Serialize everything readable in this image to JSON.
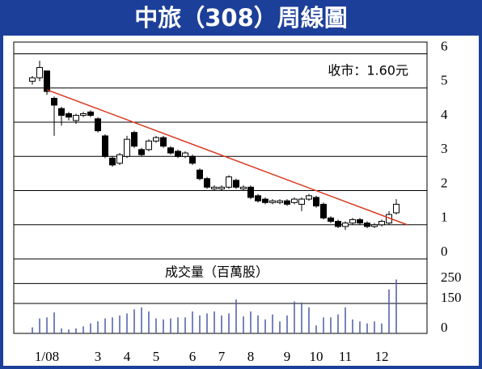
{
  "chart_data": {
    "type": "candlestick",
    "title": "中旅（308）周線圖",
    "annotation": "收市：1.60元",
    "categories": [
      null,
      null,
      "1/08",
      null,
      null,
      null,
      null,
      null,
      null,
      "3",
      null,
      null,
      null,
      "4",
      null,
      null,
      null,
      "5",
      null,
      null,
      null,
      null,
      "6",
      null,
      null,
      null,
      "7",
      null,
      null,
      null,
      "8",
      null,
      null,
      null,
      null,
      "9",
      null,
      null,
      null,
      "10",
      null,
      null,
      null,
      "11",
      null,
      null,
      null,
      null,
      "12",
      null,
      null
    ],
    "open": [
      5.2,
      5.3,
      5.5,
      4.7,
      4.4,
      4.25,
      4.05,
      4.2,
      4.3,
      4.1,
      3.6,
      2.95,
      2.8,
      3.0,
      3.7,
      3.2,
      3.2,
      3.45,
      3.55,
      3.25,
      3.15,
      3.0,
      3.0,
      2.6,
      2.35,
      2.05,
      2.05,
      2.1,
      2.3,
      2.05,
      2.1,
      1.85,
      1.75,
      1.65,
      1.65,
      1.7,
      1.65,
      1.6,
      1.75,
      1.8,
      1.6,
      1.2,
      1.1,
      0.95,
      1.05,
      1.15,
      1.05,
      0.95,
      1.0,
      1.05,
      1.35
    ],
    "high": [
      5.35,
      5.8,
      5.5,
      4.75,
      4.45,
      4.3,
      4.25,
      4.3,
      4.35,
      4.15,
      3.65,
      3.0,
      3.1,
      3.6,
      3.75,
      3.25,
      3.5,
      3.6,
      3.6,
      3.3,
      3.2,
      3.15,
      3.05,
      2.65,
      2.4,
      2.15,
      2.15,
      2.45,
      2.35,
      2.15,
      2.15,
      1.9,
      1.8,
      1.75,
      1.75,
      1.75,
      1.8,
      1.8,
      1.9,
      1.85,
      1.65,
      1.25,
      1.15,
      1.1,
      1.2,
      1.2,
      1.1,
      1.05,
      1.15,
      1.4,
      1.75
    ],
    "low": [
      5.1,
      5.2,
      4.8,
      3.6,
      3.9,
      4.05,
      3.95,
      4.15,
      4.15,
      3.7,
      2.95,
      2.7,
      2.75,
      2.95,
      3.25,
      3.0,
      3.15,
      3.4,
      3.25,
      3.05,
      2.95,
      2.95,
      2.75,
      2.3,
      2.05,
      2.0,
      2.0,
      2.05,
      2.05,
      2.0,
      1.75,
      1.65,
      1.6,
      1.6,
      1.6,
      1.55,
      1.6,
      1.4,
      1.7,
      1.5,
      1.15,
      1.05,
      0.9,
      0.85,
      1.0,
      1.0,
      0.9,
      0.9,
      0.95,
      1.0,
      1.3
    ],
    "close": [
      5.3,
      5.6,
      4.9,
      4.5,
      4.2,
      4.15,
      4.2,
      4.25,
      4.2,
      3.75,
      3.0,
      2.75,
      3.05,
      3.5,
      3.3,
      3.05,
      3.45,
      3.55,
      3.3,
      3.1,
      3.0,
      3.1,
      2.8,
      2.35,
      2.1,
      2.1,
      2.1,
      2.4,
      2.1,
      2.1,
      1.8,
      1.7,
      1.65,
      1.7,
      1.7,
      1.6,
      1.75,
      1.75,
      1.85,
      1.55,
      1.2,
      1.1,
      0.95,
      1.05,
      1.15,
      1.05,
      0.95,
      1.0,
      1.1,
      1.3,
      1.6
    ],
    "up_color": "#ffffff",
    "down_color": "#000000",
    "ylim": [
      0,
      6.25
    ],
    "yticks": [
      0,
      1,
      2,
      3,
      4,
      5,
      6
    ],
    "grid": true,
    "trendline": {
      "color": "#d9381e",
      "x": [
        2,
        51.5
      ],
      "values": [
        4.95,
        1.0
      ]
    },
    "volume": {
      "type": "bar",
      "label": "成交量（百萬股）",
      "color": "#4a5aa8",
      "values": [
        30,
        75,
        80,
        105,
        25,
        20,
        25,
        35,
        50,
        60,
        75,
        80,
        90,
        100,
        120,
        130,
        110,
        75,
        70,
        75,
        80,
        80,
        110,
        90,
        100,
        110,
        90,
        100,
        170,
        85,
        110,
        90,
        70,
        95,
        60,
        90,
        160,
        155,
        130,
        40,
        80,
        80,
        95,
        130,
        70,
        60,
        50,
        60,
        50,
        220,
        270
      ],
      "ylim": [
        0,
        373
      ],
      "yticks": [
        0,
        150,
        250
      ],
      "grid": true
    }
  }
}
